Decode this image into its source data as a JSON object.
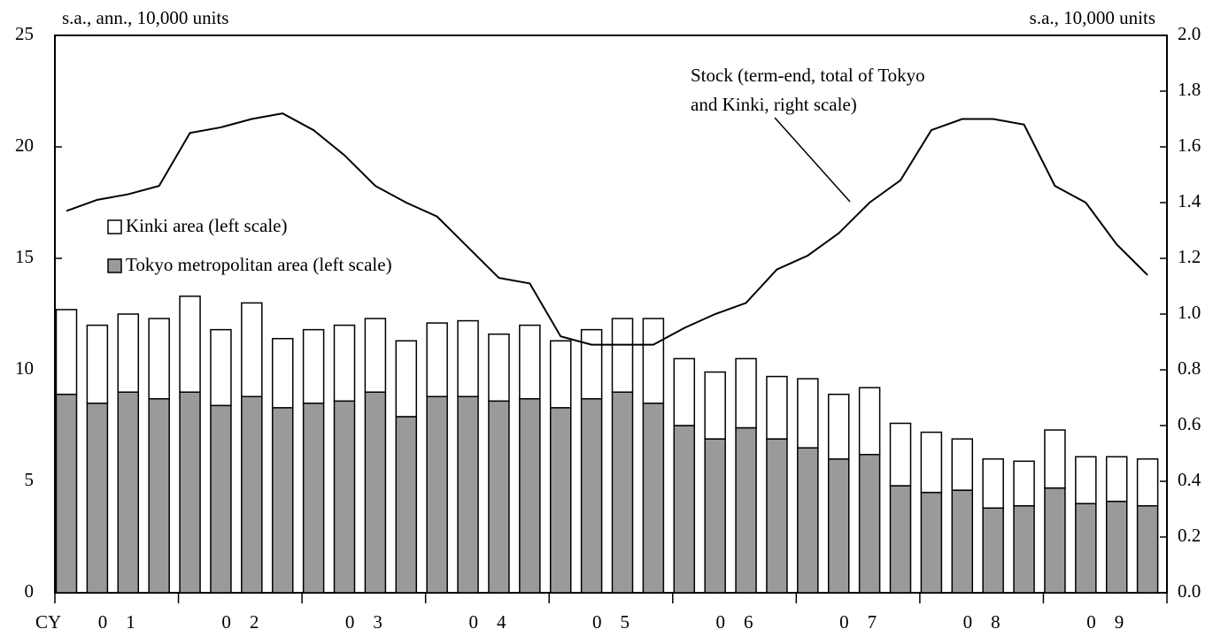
{
  "chart_data": {
    "type": "bar",
    "left_unit": "s.a., ann., 10,000 units",
    "right_unit": "s.a., 10,000 units",
    "x_prefix": "CY",
    "categories": [
      null,
      "0 1",
      null,
      null,
      null,
      "0 2",
      null,
      null,
      null,
      "0 3",
      null,
      null,
      null,
      "0 4",
      null,
      null,
      null,
      "0 5",
      null,
      null,
      null,
      "0 6",
      null,
      null,
      null,
      "0 7",
      null,
      null,
      null,
      "0 8",
      null,
      null,
      null,
      "0 9",
      null,
      null
    ],
    "series": [
      {
        "name": "Tokyo metropolitan area (left scale)",
        "color": "#9a9a9a",
        "values": [
          8.9,
          8.5,
          9.0,
          8.7,
          9.0,
          8.4,
          8.8,
          8.3,
          8.5,
          8.6,
          9.0,
          7.9,
          8.8,
          8.8,
          8.6,
          8.7,
          8.3,
          8.7,
          9.0,
          8.5,
          7.5,
          6.9,
          7.4,
          6.9,
          6.5,
          6.0,
          6.2,
          4.8,
          4.5,
          4.6,
          3.8,
          3.9,
          4.7,
          4.0,
          4.1,
          3.9
        ]
      },
      {
        "name": "Kinki area (left scale)",
        "color": "#ffffff",
        "values": [
          3.8,
          3.5,
          3.5,
          3.6,
          4.3,
          3.4,
          4.2,
          3.1,
          3.3,
          3.4,
          3.3,
          3.4,
          3.3,
          3.4,
          3.0,
          3.3,
          3.0,
          3.1,
          3.3,
          3.8,
          3.0,
          3.0,
          3.1,
          2.8,
          3.1,
          2.9,
          3.0,
          2.8,
          2.7,
          2.3,
          2.2,
          2.0,
          2.6,
          2.1,
          2.0,
          2.1
        ]
      },
      {
        "type": "line",
        "axis": "y2",
        "color": "#000000",
        "values": [
          1.37,
          1.41,
          1.43,
          1.46,
          1.65,
          1.67,
          1.7,
          1.72,
          1.66,
          1.57,
          1.46,
          1.4,
          1.35,
          1.24,
          1.13,
          1.11,
          0.92,
          0.89,
          0.89,
          0.89,
          0.95,
          1.0,
          1.04,
          1.16,
          1.21,
          1.29,
          1.4,
          1.48,
          1.66,
          1.7,
          1.7,
          1.68,
          1.46,
          1.4,
          1.25,
          1.14
        ]
      }
    ],
    "annotation": [
      "Stock (term-end, total of Tokyo",
      "and Kinki, right scale)"
    ],
    "ylim": [
      0,
      25
    ],
    "yticks": [
      0,
      5,
      10,
      15,
      20,
      25
    ],
    "y2lim": [
      0,
      2
    ],
    "y2ticks": [
      {
        "value": 0,
        "label": "0.0"
      },
      0.2,
      0.4,
      0.6,
      0.8,
      {
        "value": 1,
        "label": "1.0"
      },
      1.2,
      1.4,
      1.6,
      1.8,
      {
        "value": 2,
        "label": "2.0"
      }
    ],
    "stacked": true,
    "grid": false
  }
}
